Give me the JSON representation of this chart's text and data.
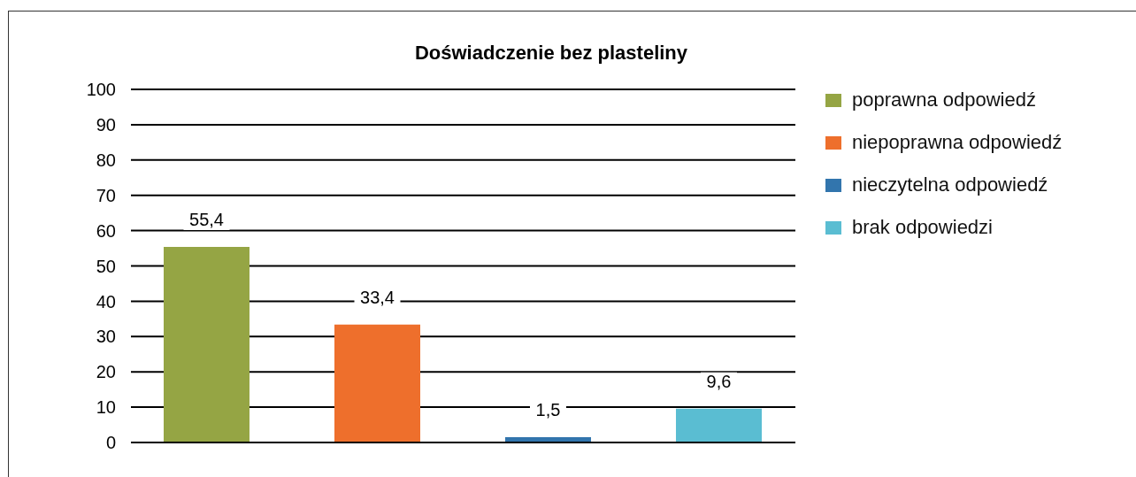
{
  "chart_data": {
    "type": "bar",
    "title": "Doświadczenie bez plasteliny",
    "categories": [
      null
    ],
    "series": [
      {
        "name": "poprawna odpowiedź",
        "color": "#95a544",
        "values": [
          55.4
        ],
        "value_labels": [
          "55,4"
        ]
      },
      {
        "name": "niepoprawna odpowiedź",
        "color": "#ee6f2c",
        "values": [
          33.4
        ],
        "value_labels": [
          "33,4"
        ]
      },
      {
        "name": "nieczytelna odpowiedź",
        "color": "#3275ad",
        "values": [
          1.5
        ],
        "value_labels": [
          "1,5"
        ]
      },
      {
        "name": "brak odpowiedzi",
        "color": "#5abdd2",
        "values": [
          9.6
        ],
        "value_labels": [
          "9,6"
        ]
      }
    ],
    "ylim": [
      0,
      100
    ],
    "yticks": [
      0,
      10,
      20,
      30,
      40,
      50,
      60,
      70,
      80,
      90,
      100
    ],
    "grid": "y",
    "legend": "right",
    "tick_labels": "y"
  }
}
